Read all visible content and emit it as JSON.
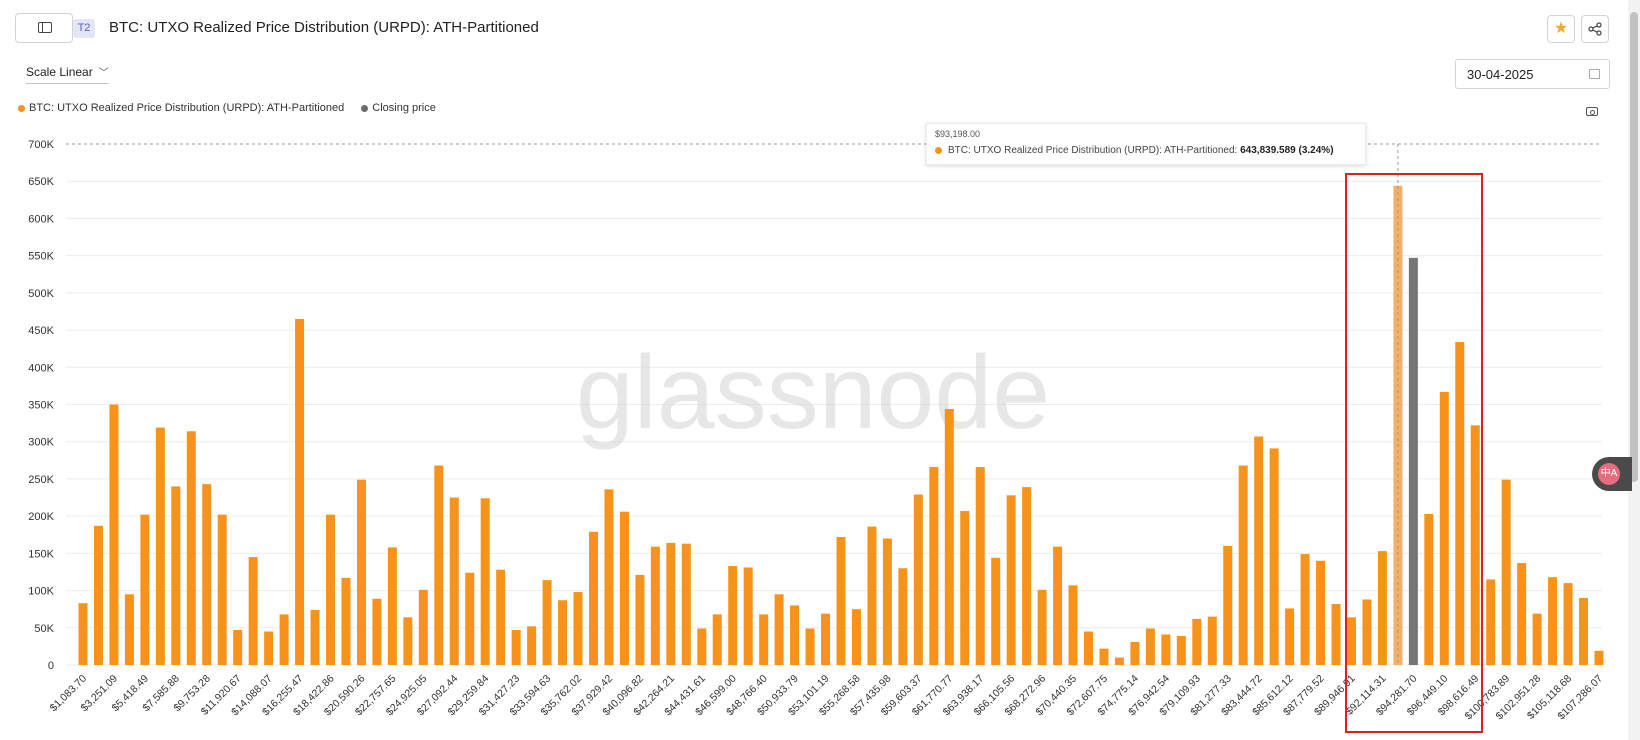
{
  "header": {
    "tier": "T2",
    "title": "BTC: UTXO Realized Price Distribution (URPD): ATH-Partitioned"
  },
  "controls": {
    "scale_label": "Scale Linear",
    "date": "30-04-2025"
  },
  "legend": [
    {
      "label": "BTC: UTXO Realized Price Distribution (URPD): ATH-Partitioned",
      "color": "#f7931a"
    },
    {
      "label": "Closing price",
      "color": "#6b6b6b"
    }
  ],
  "watermark": "glassnode",
  "tooltip": {
    "date": "$93,198.00",
    "series": "BTC: UTXO Realized Price Distribution (URPD): ATH-Partitioned:",
    "value": "643,839.589 (3.24%)"
  },
  "icons": {
    "sidebar": "sidebar-toggle-icon",
    "star": "star-icon",
    "share": "share-icon",
    "calendar": "calendar-icon",
    "camera": "camera-icon"
  },
  "chart_data": {
    "type": "bar",
    "title": "BTC: UTXO Realized Price Distribution (URPD): ATH-Partitioned",
    "xlabel": "",
    "ylabel": "",
    "ylim": [
      0,
      700000
    ],
    "y_ticks": [
      "0",
      "50K",
      "100K",
      "150K",
      "200K",
      "250K",
      "300K",
      "350K",
      "400K",
      "450K",
      "500K",
      "550K",
      "600K",
      "650K",
      "700K"
    ],
    "x_tick_labels": [
      "$1,083.70",
      "$3,251.09",
      "$5,418.49",
      "$7,585.88",
      "$9,753.28",
      "$11,920.67",
      "$14,088.07",
      "$16,255.47",
      "$18,422.86",
      "$20,590.26",
      "$22,757.65",
      "$24,925.05",
      "$27,092.44",
      "$29,259.84",
      "$31,427.23",
      "$33,594.63",
      "$35,762.02",
      "$37,929.42",
      "$40,096.82",
      "$42,264.21",
      "$44,431.61",
      "$46,599.00",
      "$48,766.40",
      "$50,933.79",
      "$53,101.19",
      "$55,268.58",
      "$57,435.98",
      "$59,603.37",
      "$61,770.77",
      "$63,938.17",
      "$66,105.56",
      "$68,272.96",
      "$70,440.35",
      "$72,607.75",
      "$74,775.14",
      "$76,942.54",
      "$79,109.93",
      "$81,277.33",
      "$83,444.72",
      "$85,612.12",
      "$87,779.52",
      "$89,946.91",
      "$92,114.31",
      "$94,281.70",
      "$96,449.10",
      "$98,616.49",
      "$100,783.89",
      "$102,951.28",
      "$105,118.68",
      "$107,286.07"
    ],
    "values": [
      83000,
      187000,
      350000,
      95000,
      202000,
      319000,
      240000,
      314000,
      243000,
      202000,
      47000,
      145000,
      45000,
      68000,
      465000,
      74000,
      202000,
      117000,
      249000,
      89000,
      158000,
      64000,
      101000,
      268000,
      225000,
      124000,
      224000,
      128000,
      47000,
      52000,
      114000,
      87000,
      98000,
      179000,
      236000,
      206000,
      121000,
      159000,
      164000,
      163000,
      49000,
      68000,
      133000,
      131000,
      68000,
      95000,
      80000,
      49000,
      69000,
      172000,
      75000,
      186000,
      170000,
      130000,
      229000,
      266000,
      344000,
      207000,
      266000,
      144000,
      228000,
      239000,
      101000,
      159000,
      107000,
      45000,
      22000,
      10000,
      31000,
      49000,
      41000,
      39000,
      62000,
      65000,
      160000,
      268000,
      307000,
      291000,
      76000,
      149000,
      140000,
      82000,
      64000,
      88000,
      153000,
      643839.589,
      547000,
      203000,
      367000,
      434000,
      322000,
      115000,
      249000,
      137000,
      69000,
      118000,
      110000,
      90000,
      19000
    ],
    "highlighted_index": 85,
    "closing_price_index": 86,
    "series": [
      {
        "name": "BTC: UTXO Realized Price Distribution (URPD): ATH-Partitioned",
        "color": "#f7931a"
      },
      {
        "name": "Closing price",
        "color": "#6b6b6b"
      }
    ],
    "grid": true,
    "legend_position": "top-left"
  }
}
